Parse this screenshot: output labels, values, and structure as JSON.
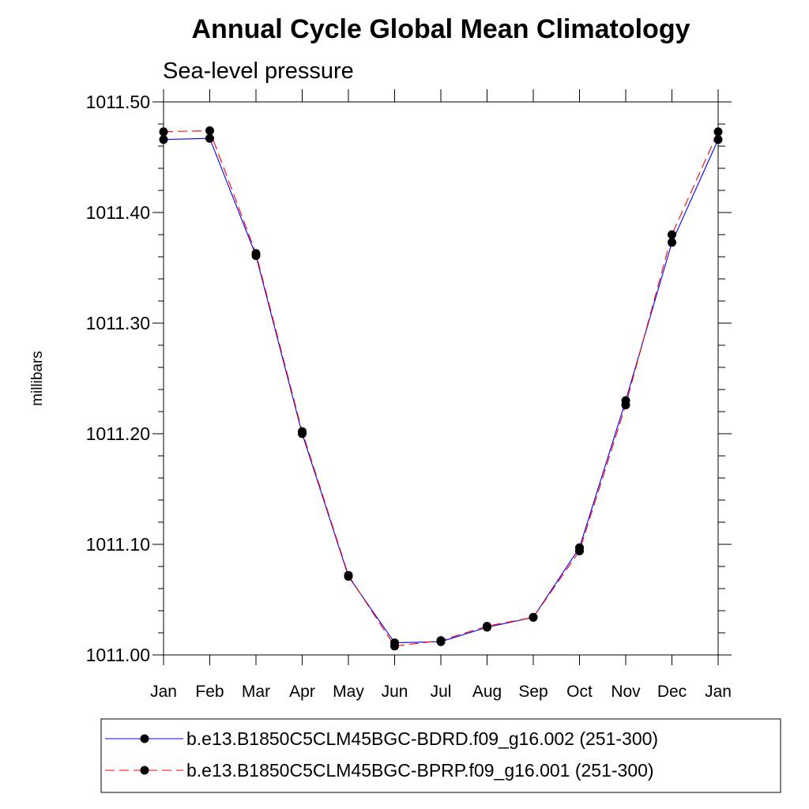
{
  "chart_data": {
    "type": "line",
    "title": "Annual Cycle Global Mean Climatology",
    "subtitle": "Sea-level pressure",
    "xlabel": "",
    "ylabel": "millibars",
    "categories": [
      "Jan",
      "Feb",
      "Mar",
      "Apr",
      "May",
      "Jun",
      "Jul",
      "Aug",
      "Sep",
      "Oct",
      "Nov",
      "Dec",
      "Jan"
    ],
    "ylim": [
      1011.0,
      1011.5
    ],
    "yticks": [
      1011.0,
      1011.1,
      1011.2,
      1011.3,
      1011.4,
      1011.5
    ],
    "ytick_labels": [
      "1011.00",
      "1011.10",
      "1011.20",
      "1011.30",
      "1011.40",
      "1011.50"
    ],
    "minor_per_major": 5,
    "grid": false,
    "legend_position": "bottom",
    "series": [
      {
        "name": "b.e13.B1850C5CLM45BGC-BDRD.f09_g16.002 (251-300)",
        "color": "#0000ff",
        "style": "solid",
        "values": [
          1011.466,
          1011.467,
          1011.361,
          1011.2,
          1011.071,
          1011.011,
          1011.012,
          1011.025,
          1011.034,
          1011.097,
          1011.23,
          1011.373,
          1011.466
        ]
      },
      {
        "name": "b.e13.B1850C5CLM45BGC-BPRP.f09_g16.001 (251-300)",
        "color": "#ff0000",
        "style": "dashed",
        "values": [
          1011.473,
          1011.474,
          1011.363,
          1011.202,
          1011.072,
          1011.008,
          1011.013,
          1011.026,
          1011.034,
          1011.094,
          1011.226,
          1011.38,
          1011.473
        ]
      }
    ]
  }
}
